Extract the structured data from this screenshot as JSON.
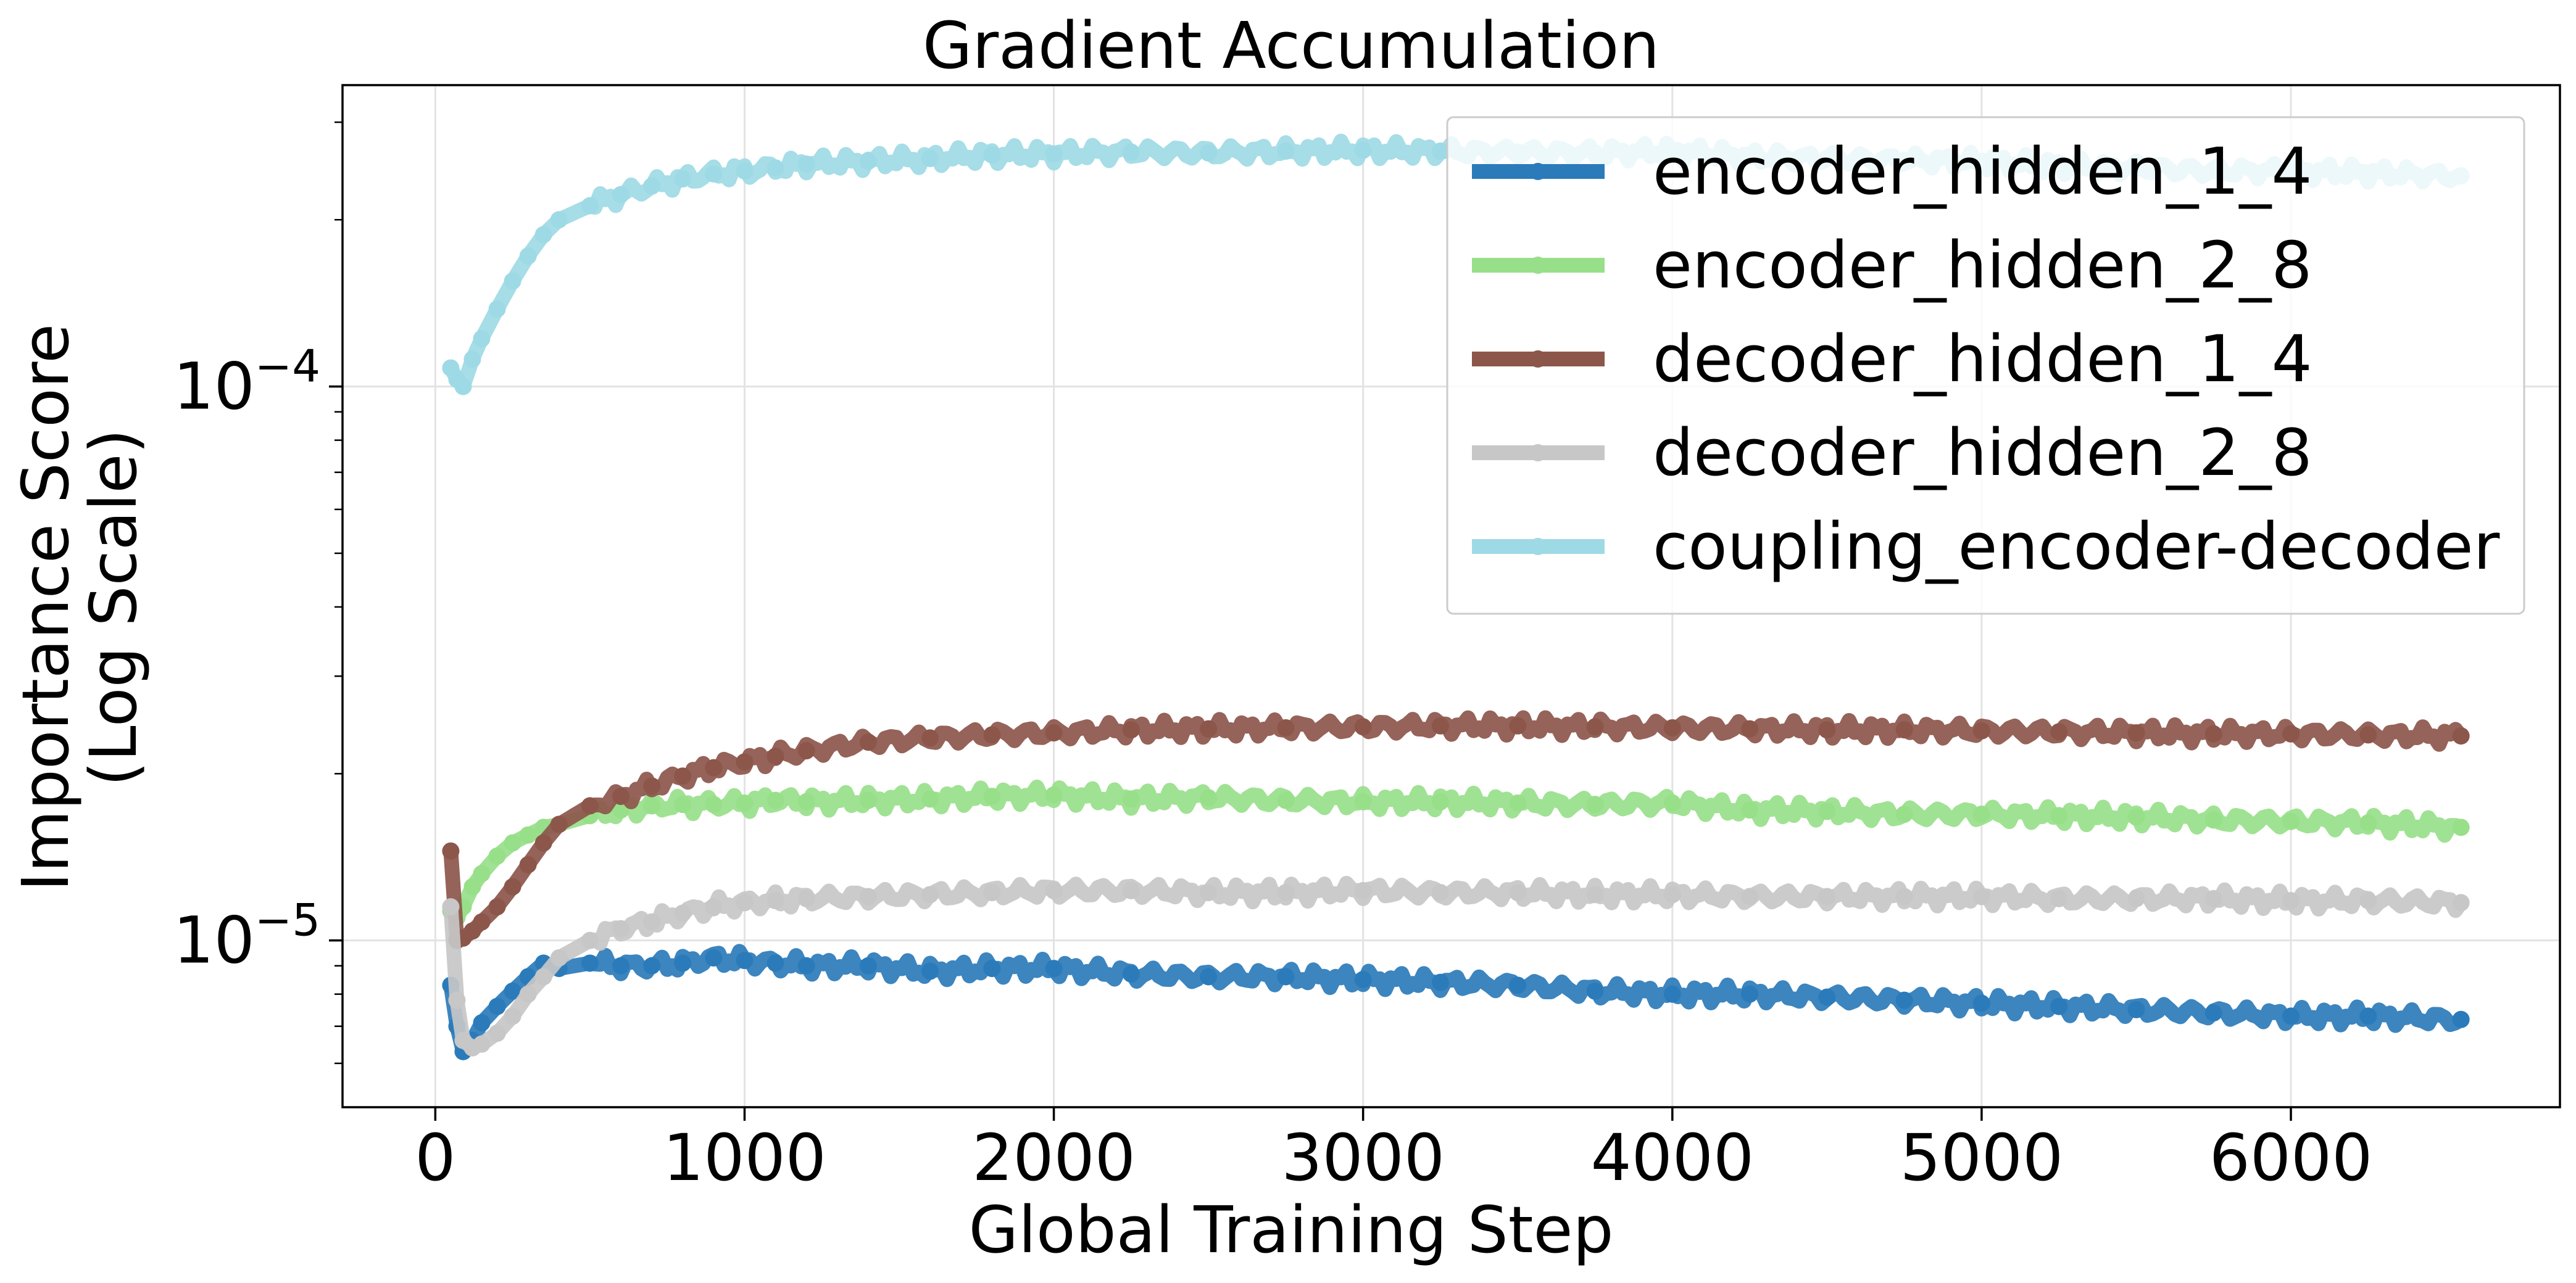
{
  "chart_data": {
    "type": "line",
    "title": "Gradient Accumulation",
    "xlabel": "Global Training Step",
    "ylabel_line1": "Importance Score",
    "ylabel_line2": "(Log Scale)",
    "yscale": "log",
    "xlim": [
      -300,
      6870
    ],
    "ylim": [
      5e-06,
      0.00035
    ],
    "x_ticks": [
      0,
      1000,
      2000,
      3000,
      4000,
      5000,
      6000
    ],
    "x_tick_labels": [
      "0",
      "1000",
      "2000",
      "3000",
      "4000",
      "5000",
      "6000"
    ],
    "y_ticks": [
      1e-05,
      0.0001
    ],
    "y_tick_labels": [
      {
        "base": "10",
        "exp": "−5"
      },
      {
        "base": "10",
        "exp": "−4"
      }
    ],
    "grid": true,
    "legend_position": "upper right",
    "x": [
      50,
      70,
      90,
      120,
      150,
      200,
      250,
      300,
      350,
      400,
      500,
      600,
      700,
      800,
      900,
      1000,
      1100,
      1200,
      1400,
      1600,
      1800,
      2000,
      2250,
      2500,
      2750,
      3000,
      3250,
      3500,
      3750,
      4000,
      4250,
      4500,
      4750,
      5000,
      5250,
      5500,
      5750,
      6000,
      6250,
      6550
    ],
    "series": [
      {
        "name": "encoder_hidden_1_4",
        "color": "#2b7bba",
        "values": [
          8.3e-06,
          7e-06,
          6.3e-06,
          6.6e-06,
          7.1e-06,
          7.6e-06,
          8.1e-06,
          8.6e-06,
          9.1e-06,
          8.9e-06,
          9.1e-06,
          9e-06,
          9e-06,
          9.1e-06,
          9.3e-06,
          9.2e-06,
          9.1e-06,
          9e-06,
          9e-06,
          8.8e-06,
          8.9e-06,
          8.9e-06,
          8.7e-06,
          8.6e-06,
          8.6e-06,
          8.5e-06,
          8.4e-06,
          8.3e-06,
          8.1e-06,
          8e-06,
          8e-06,
          7.9e-06,
          7.8e-06,
          7.7e-06,
          7.6e-06,
          7.5e-06,
          7.4e-06,
          7.3e-06,
          7.3e-06,
          7.2e-06
        ]
      },
      {
        "name": "encoder_hidden_2_8",
        "color": "#98df8a",
        "values": [
          1.13e-05,
          1.1e-05,
          1.15e-05,
          1.25e-05,
          1.32e-05,
          1.42e-05,
          1.5e-05,
          1.55e-05,
          1.6e-05,
          1.62e-05,
          1.68e-05,
          1.72e-05,
          1.75e-05,
          1.76e-05,
          1.76e-05,
          1.77e-05,
          1.79e-05,
          1.78e-05,
          1.79e-05,
          1.8e-05,
          1.82e-05,
          1.83e-05,
          1.8e-05,
          1.81e-05,
          1.79e-05,
          1.78e-05,
          1.78e-05,
          1.77e-05,
          1.76e-05,
          1.77e-05,
          1.72e-05,
          1.71e-05,
          1.69e-05,
          1.69e-05,
          1.68e-05,
          1.67e-05,
          1.65e-05,
          1.64e-05,
          1.63e-05,
          1.6e-05
        ]
      },
      {
        "name": "decoder_hidden_1_4",
        "color": "#8c564b",
        "values": [
          1.45e-05,
          1e-05,
          1.01e-05,
          1.04e-05,
          1.08e-05,
          1.15e-05,
          1.25e-05,
          1.37e-05,
          1.5e-05,
          1.62e-05,
          1.75e-05,
          1.82e-05,
          1.9e-05,
          1.98e-05,
          2.05e-05,
          2.1e-05,
          2.15e-05,
          2.2e-05,
          2.28e-05,
          2.32e-05,
          2.35e-05,
          2.37e-05,
          2.4e-05,
          2.41e-05,
          2.42e-05,
          2.43e-05,
          2.44e-05,
          2.44e-05,
          2.43e-05,
          2.42e-05,
          2.41e-05,
          2.4e-05,
          2.4e-05,
          2.39e-05,
          2.38e-05,
          2.37e-05,
          2.36e-05,
          2.36e-05,
          2.35e-05,
          2.34e-05
        ]
      },
      {
        "name": "decoder_hidden_2_8",
        "color": "#c7c7c7",
        "values": [
          1.15e-05,
          7.8e-06,
          6.6e-06,
          6.4e-06,
          6.5e-06,
          6.8e-06,
          7.3e-06,
          8e-06,
          8.6e-06,
          9.3e-06,
          1e-05,
          1.05e-05,
          1.08e-05,
          1.12e-05,
          1.15e-05,
          1.17e-05,
          1.18e-05,
          1.19e-05,
          1.2e-05,
          1.21e-05,
          1.22e-05,
          1.23e-05,
          1.23e-05,
          1.22e-05,
          1.22e-05,
          1.23e-05,
          1.22e-05,
          1.22e-05,
          1.21e-05,
          1.21e-05,
          1.2e-05,
          1.2e-05,
          1.2e-05,
          1.2e-05,
          1.19e-05,
          1.19e-05,
          1.19e-05,
          1.18e-05,
          1.18e-05,
          1.17e-05
        ]
      },
      {
        "name": "coupling_encoder-decoder",
        "color": "#9edae5",
        "values": [
          0.000108,
          0.000103,
          0.0001,
          0.000112,
          0.000122,
          0.000138,
          0.000155,
          0.000172,
          0.000188,
          0.0002,
          0.000212,
          0.000222,
          0.00023,
          0.000237,
          0.000242,
          0.000245,
          0.000248,
          0.000252,
          0.000255,
          0.000258,
          0.000262,
          0.000263,
          0.000265,
          0.000264,
          0.000266,
          0.000267,
          0.000266,
          0.000265,
          0.000264,
          0.000266,
          0.00026,
          0.000258,
          0.000256,
          0.000255,
          0.00025,
          0.000248,
          0.000245,
          0.000245,
          0.000243,
          0.00024
        ]
      }
    ]
  }
}
